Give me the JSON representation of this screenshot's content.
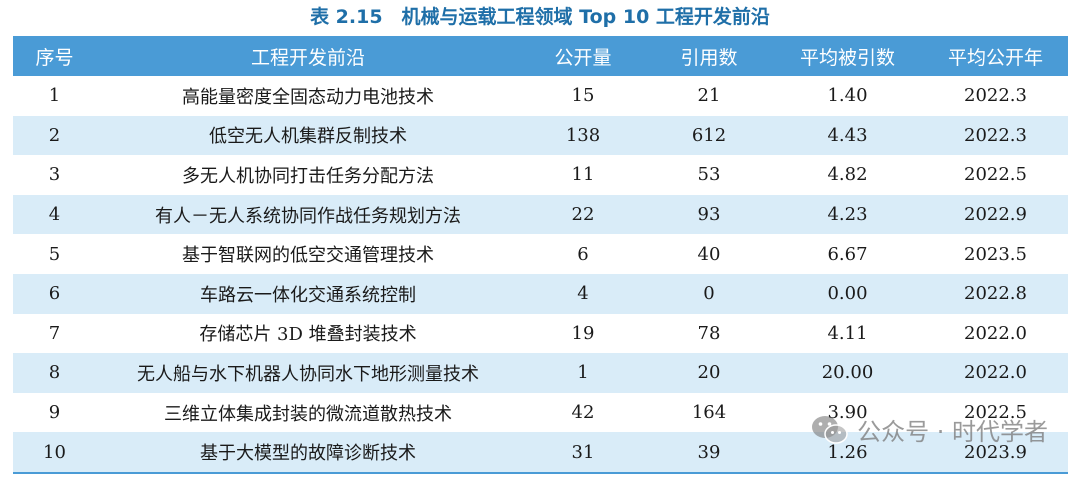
{
  "title": "表 2.15　机械与运载工程领域 Top 10 工程开发前沿",
  "headers": {
    "rank": "序号",
    "topic": "工程开发前沿",
    "published": "公开量",
    "cited": "引用数",
    "avg_cited": "平均被引数",
    "avg_year": "平均公开年"
  },
  "rows": [
    {
      "rank": "1",
      "topic": "高能量密度全固态动力电池技术",
      "published": "15",
      "cited": "21",
      "avg_cited": "1.40",
      "avg_year": "2022.3"
    },
    {
      "rank": "2",
      "topic": "低空无人机集群反制技术",
      "published": "138",
      "cited": "612",
      "avg_cited": "4.43",
      "avg_year": "2022.3"
    },
    {
      "rank": "3",
      "topic": "多无人机协同打击任务分配方法",
      "published": "11",
      "cited": "53",
      "avg_cited": "4.82",
      "avg_year": "2022.5"
    },
    {
      "rank": "4",
      "topic": "有人－无人系统协同作战任务规划方法",
      "published": "22",
      "cited": "93",
      "avg_cited": "4.23",
      "avg_year": "2022.9"
    },
    {
      "rank": "5",
      "topic": "基于智联网的低空交通管理技术",
      "published": "6",
      "cited": "40",
      "avg_cited": "6.67",
      "avg_year": "2023.5"
    },
    {
      "rank": "6",
      "topic": "车路云一体化交通系统控制",
      "published": "4",
      "cited": "0",
      "avg_cited": "0.00",
      "avg_year": "2022.8"
    },
    {
      "rank": "7",
      "topic": "存储芯片 3D 堆叠封装技术",
      "published": "19",
      "cited": "78",
      "avg_cited": "4.11",
      "avg_year": "2022.0"
    },
    {
      "rank": "8",
      "topic": "无人船与水下机器人协同水下地形测量技术",
      "published": "1",
      "cited": "20",
      "avg_cited": "20.00",
      "avg_year": "2022.0"
    },
    {
      "rank": "9",
      "topic": "三维立体集成封装的微流道散热技术",
      "published": "42",
      "cited": "164",
      "avg_cited": "3.90",
      "avg_year": "2022.5"
    },
    {
      "rank": "10",
      "topic": "基于大模型的故障诊断技术",
      "published": "31",
      "cited": "39",
      "avg_cited": "1.26",
      "avg_year": "2023.9"
    }
  ],
  "watermark": {
    "icon": "wechat-icon",
    "text": "公众号 · 时代学者"
  },
  "colors": {
    "title": "#1f6fa8",
    "header_bg": "#4a9bd6",
    "alt_row_bg": "#d9ecf8"
  }
}
